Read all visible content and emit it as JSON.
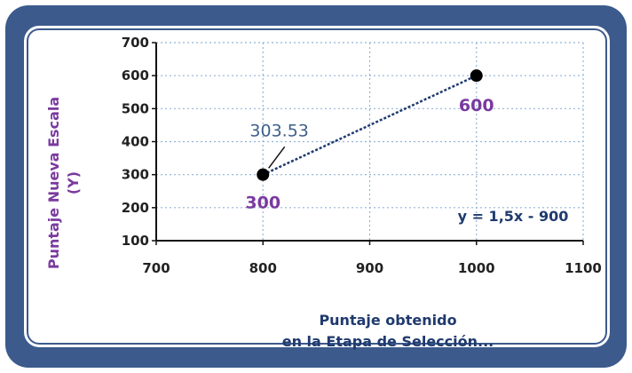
{
  "chart_data": {
    "type": "line",
    "xlabel": [
      "Puntaje obtenido",
      "en la Etapa de Selección..."
    ],
    "ylabel": [
      "Puntaje Nueva Escala",
      "(Y)"
    ],
    "xlim": [
      700,
      1100
    ],
    "ylim": [
      100,
      700
    ],
    "xticks": [
      700,
      800,
      900,
      1000,
      1100
    ],
    "yticks": [
      100,
      200,
      300,
      400,
      500,
      600,
      700
    ],
    "grid": true,
    "points": [
      {
        "x": 800,
        "y": 300,
        "label": "300"
      },
      {
        "x": 1000,
        "y": 600,
        "label": "600"
      }
    ],
    "annotation": {
      "text": "303.53",
      "x": 802,
      "y": 303.53
    },
    "equation": "y = 1,5x - 900",
    "colors": {
      "line": "#1f3a6e",
      "marker": "#000000",
      "grid": "#8fb4d8",
      "labels": "#7a3a9e"
    }
  }
}
